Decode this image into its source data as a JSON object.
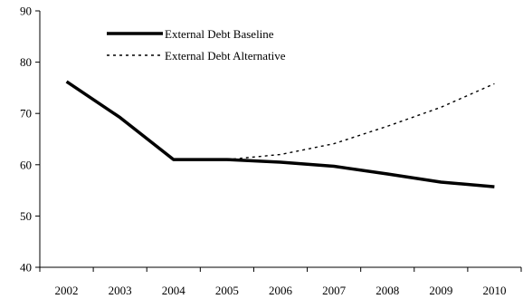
{
  "chart_data": {
    "type": "line",
    "title": "",
    "xlabel": "",
    "ylabel": "",
    "x": [
      "2002",
      "2003",
      "2004",
      "2005",
      "2006",
      "2007",
      "2008",
      "2009",
      "2010"
    ],
    "ylim": [
      40,
      90
    ],
    "yticks": [
      40,
      50,
      60,
      70,
      80,
      90
    ],
    "grid": false,
    "legend_position": "top-left",
    "series": [
      {
        "name": "External Debt Baseline",
        "style": "solid",
        "color": "#000000",
        "values": [
          76.2,
          69.2,
          61.0,
          61.0,
          60.5,
          59.7,
          58.2,
          56.6,
          55.7
        ]
      },
      {
        "name": "External Debt Alternative",
        "style": "dotted",
        "color": "#000000",
        "values": [
          null,
          null,
          null,
          61.0,
          62.0,
          64.1,
          67.5,
          71.2,
          75.8
        ]
      }
    ]
  }
}
